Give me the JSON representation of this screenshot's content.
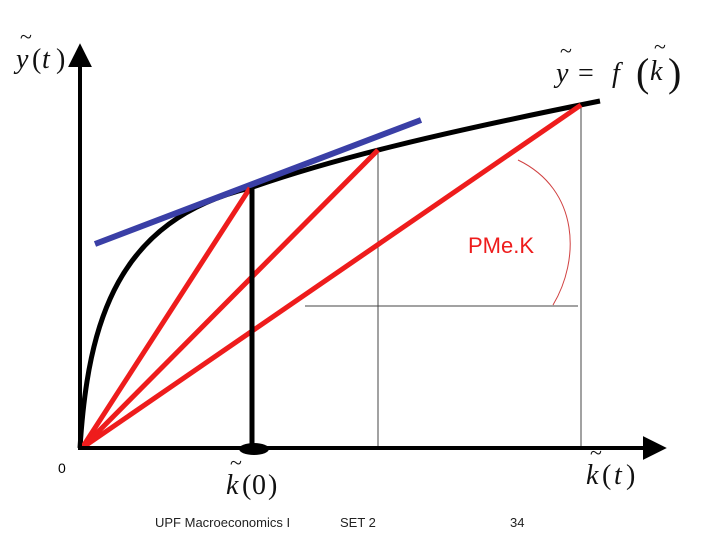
{
  "diagram": {
    "y_axis_label": {
      "var": "y",
      "tilde": "~",
      "paren_open": "(",
      "arg": "t",
      "paren_close": ")"
    },
    "function_label": {
      "lhs": "y",
      "tilde": "~",
      "eq": "=",
      "f": "f",
      "paren_open": "(",
      "arg": "k",
      "arg_tilde": "~",
      "paren_close": ")"
    },
    "annotation": "PMe.K",
    "origin_label": "0",
    "x_label_initial": {
      "var": "k",
      "tilde": "~",
      "paren_open": "(",
      "arg": "0",
      "paren_close": ")"
    },
    "x_label_t": {
      "var": "k",
      "tilde": "~",
      "paren_open": "(",
      "arg": "t",
      "paren_close": ")"
    },
    "colors": {
      "axis": "#000000",
      "curve": "#000000",
      "rays": "#ee1c1c",
      "tangent": "#3a3fa6",
      "guides": "#444444",
      "arc": "#d04040"
    }
  },
  "footer": {
    "course": "UPF Macroeconomics I",
    "set": "SET 2",
    "page": "34"
  }
}
